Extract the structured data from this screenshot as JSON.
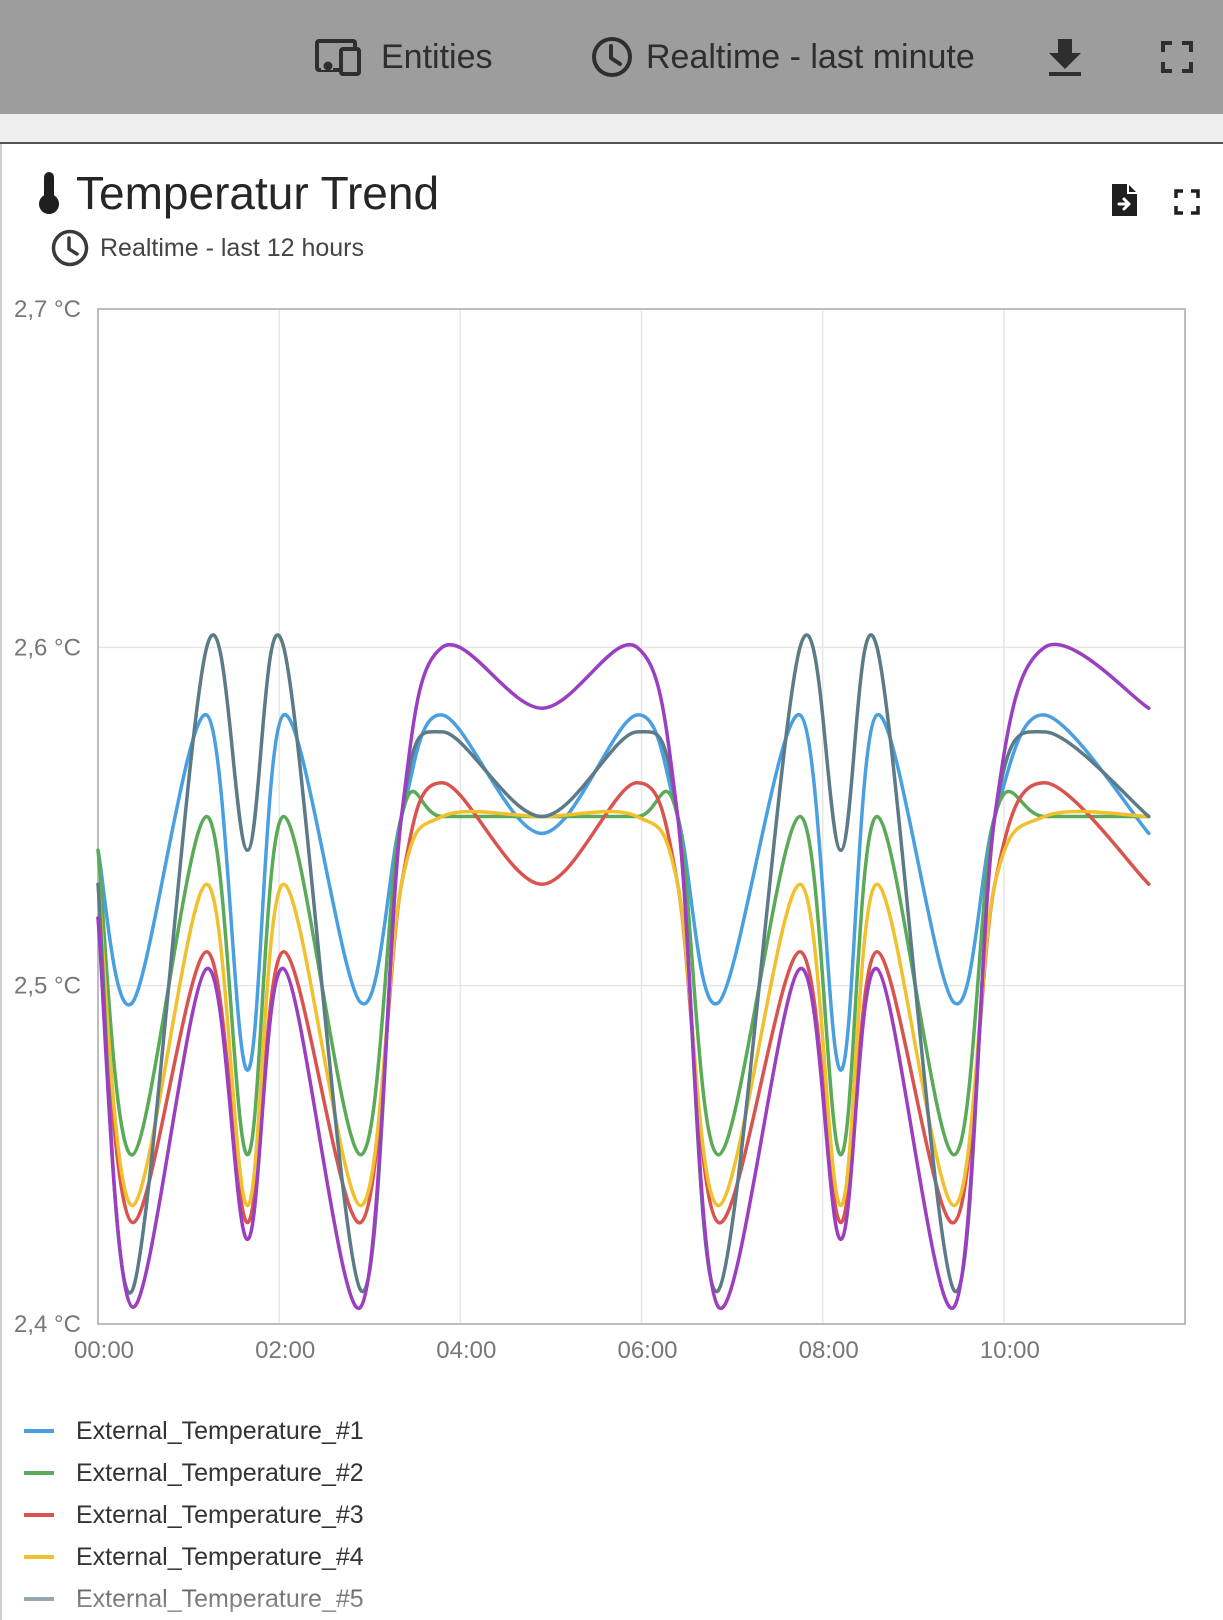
{
  "toolbar": {
    "entities_label": "Entities",
    "timewindow_label": "Realtime - last minute"
  },
  "widget": {
    "title": "Temperatur Trend",
    "subtitle": "Realtime - last 12 hours"
  },
  "colors": {
    "toolbar_bg": "#9d9d9d",
    "series": [
      "#4a9fe0",
      "#5aaa58",
      "#d9534f",
      "#f0c02e",
      "#5c7a87",
      "#9b3fc0"
    ]
  },
  "icons": {
    "entities": "devices-icon",
    "timewindow": "clock-icon",
    "download": "download-icon",
    "fullscreen": "fullscreen-icon",
    "title": "thermometer-icon",
    "export": "file-export-icon"
  },
  "chart_data": {
    "type": "line",
    "x_labels": [
      "00:00",
      "02:00",
      "04:00",
      "06:00",
      "08:00",
      "10:00"
    ],
    "x_ticks_hours": [
      0,
      2,
      4,
      6,
      8,
      10
    ],
    "x_range_hours": [
      0,
      12
    ],
    "y_ticks": [
      2.4,
      2.5,
      2.6,
      2.7
    ],
    "y_tick_labels": [
      "2,4 °C",
      "2,5 °C",
      "2,6 °C",
      "2,7 °C"
    ],
    "ylim": [
      2.4,
      2.7
    ],
    "grid": true,
    "legend_position": "bottom-left",
    "x_hours": [
      0,
      0.38,
      1.2,
      1.65,
      2.05,
      2.9,
      3.35,
      3.8,
      4.9,
      5.95,
      6.4,
      6.85,
      7.75,
      8.2,
      8.6,
      9.45,
      9.9,
      10.45,
      11.6
    ],
    "series": [
      {
        "name": "External_Temperature_#1",
        "color": "#4a9fe0",
        "values": [
          2.54,
          2.495,
          2.58,
          2.475,
          2.58,
          2.495,
          2.55,
          2.58,
          2.545,
          2.58,
          2.55,
          2.495,
          2.58,
          2.475,
          2.58,
          2.495,
          2.55,
          2.58,
          2.545
        ]
      },
      {
        "name": "External_Temperature_#2",
        "color": "#5aaa58",
        "values": [
          2.54,
          2.45,
          2.55,
          2.45,
          2.55,
          2.45,
          2.55,
          2.55,
          2.55,
          2.55,
          2.55,
          2.45,
          2.55,
          2.45,
          2.55,
          2.45,
          2.55,
          2.55,
          2.55
        ]
      },
      {
        "name": "External_Temperature_#3",
        "color": "#d9534f",
        "values": [
          2.52,
          2.43,
          2.51,
          2.43,
          2.51,
          2.43,
          2.53,
          2.56,
          2.53,
          2.56,
          2.53,
          2.43,
          2.51,
          2.43,
          2.51,
          2.43,
          2.53,
          2.56,
          2.53
        ]
      },
      {
        "name": "External_Temperature_#4",
        "color": "#f0c02e",
        "values": [
          2.53,
          2.435,
          2.53,
          2.435,
          2.53,
          2.435,
          2.53,
          2.55,
          2.55,
          2.55,
          2.53,
          2.435,
          2.53,
          2.435,
          2.53,
          2.435,
          2.53,
          2.55,
          2.55
        ]
      },
      {
        "name": "External_Temperature_#5",
        "color": "#5c7a87",
        "values": [
          2.53,
          2.41,
          2.6,
          2.54,
          2.6,
          2.41,
          2.55,
          2.575,
          2.55,
          2.575,
          2.55,
          2.41,
          2.6,
          2.54,
          2.6,
          2.41,
          2.55,
          2.575,
          2.55
        ]
      },
      {
        "name": "",
        "color": "#9b3fc0",
        "values": [
          2.52,
          2.405,
          2.505,
          2.425,
          2.505,
          2.405,
          2.55,
          2.6,
          2.582,
          2.6,
          2.55,
          2.405,
          2.505,
          2.425,
          2.505,
          2.405,
          2.55,
          2.6,
          2.582
        ]
      }
    ],
    "legend_visible": [
      "External_Temperature_#1",
      "External_Temperature_#2",
      "External_Temperature_#3",
      "External_Temperature_#4",
      "External_Temperature_#5"
    ]
  }
}
